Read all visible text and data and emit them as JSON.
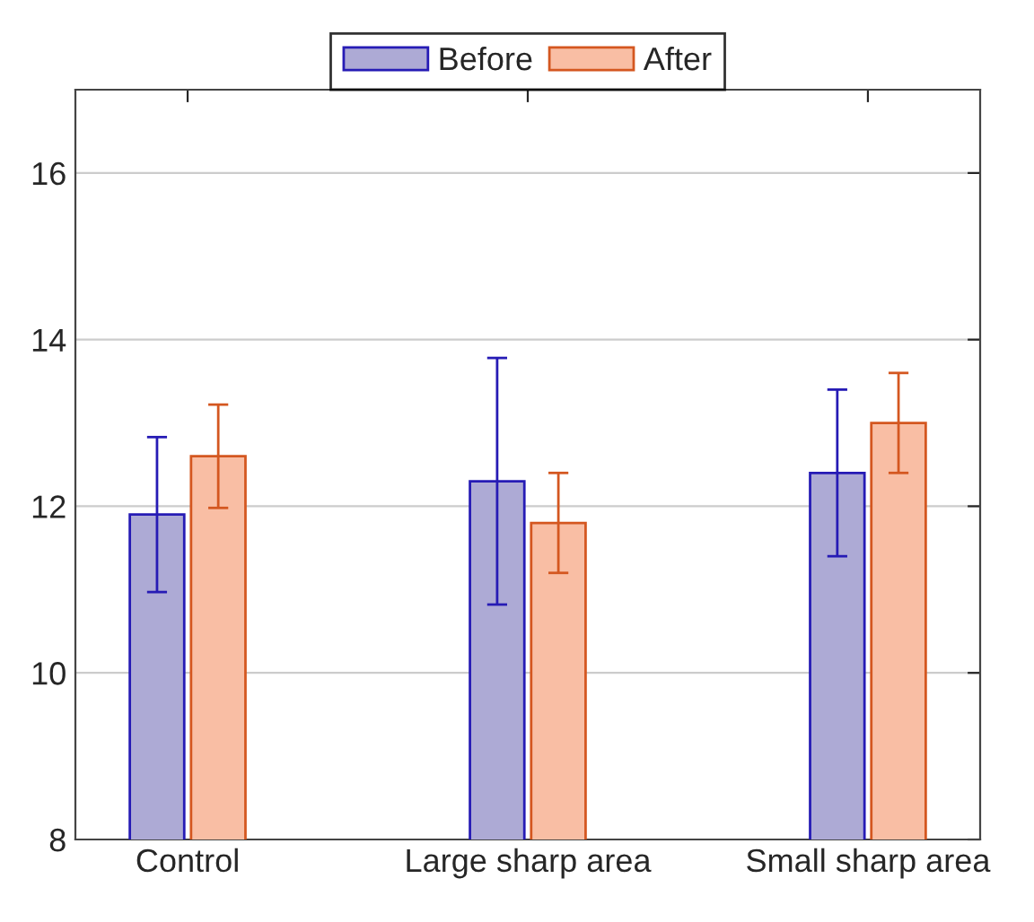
{
  "chart_data": {
    "type": "bar",
    "categories": [
      "Control",
      "Large sharp area",
      "Small sharp area"
    ],
    "series": [
      {
        "name": "Before",
        "color": "#adaad5",
        "values": [
          11.9,
          12.3,
          12.4
        ],
        "errors": [
          0.93,
          1.48,
          1.0
        ]
      },
      {
        "name": "After",
        "color": "#f9bea4",
        "values": [
          12.6,
          11.8,
          13.0
        ],
        "errors": [
          0.62,
          0.6,
          0.6
        ]
      }
    ],
    "ylim": [
      8,
      17
    ],
    "yticks": [
      8,
      10,
      12,
      14,
      16
    ],
    "grid": "y",
    "legend": "top"
  }
}
